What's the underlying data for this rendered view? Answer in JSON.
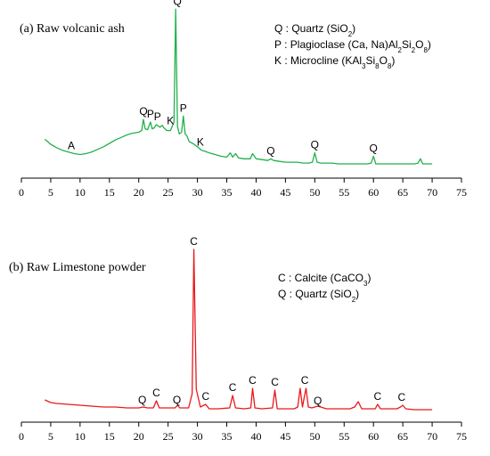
{
  "chart_data": [
    {
      "type": "line",
      "title": "(a) Raw volcanic ash",
      "color": "#22b14c",
      "xlim": [
        0,
        75
      ],
      "xticks": [
        0,
        5,
        10,
        15,
        20,
        25,
        30,
        35,
        40,
        45,
        50,
        55,
        60,
        65,
        70,
        75
      ],
      "yaxis_visible": false,
      "grid": false,
      "legend": {
        "placement": "top-right",
        "entries": [
          {
            "label": "Q : Quartz (SiO",
            "formula_subs": [
              "2"
            ],
            "suffix": ")"
          },
          {
            "label": "P : Plagioclase (Ca, Na)Al",
            "formula_subs": [
              "2",
              "2",
              "8"
            ],
            "formula_letters": [
              "Si",
              "O"
            ],
            "suffix": ")"
          },
          {
            "label": "K : Microcline (KAl",
            "formula_subs": [
              "3",
              "8"
            ],
            "formula_letters": [
              "Si",
              "O"
            ],
            "suffix": ")"
          }
        ]
      },
      "series": [
        {
          "x": [
            4,
            5,
            6,
            7,
            8,
            9,
            10,
            11,
            12,
            13,
            14,
            15,
            16,
            17,
            18,
            19,
            20,
            20.5,
            20.8,
            21.1,
            21.5,
            22,
            22.3,
            22.6,
            23,
            23.6,
            24,
            24.3,
            24.8,
            25.4,
            26,
            26.3,
            26.6,
            26.9,
            27.3,
            27.6,
            27.9,
            28.2,
            28.6,
            29.2,
            30,
            30.7,
            31.2,
            32,
            33,
            34,
            35,
            35.6,
            36,
            36.5,
            37,
            38,
            39,
            39.4,
            40,
            41,
            42,
            42.5,
            43,
            44,
            45,
            46,
            47,
            48,
            49,
            49.6,
            50,
            50.4,
            51,
            52,
            53,
            54,
            55,
            56,
            57,
            58,
            59,
            59.6,
            60,
            60.4,
            61,
            62,
            63,
            64,
            65,
            66,
            67,
            67.6,
            68,
            68.4,
            69,
            70
          ],
          "y": [
            30,
            24,
            20,
            17,
            15,
            13,
            12,
            13,
            15,
            18,
            21,
            25,
            29,
            32,
            35,
            37,
            38,
            40,
            53,
            42,
            41,
            50,
            42,
            43,
            47,
            44,
            46,
            43,
            40,
            40,
            50,
            182,
            45,
            36,
            38,
            57,
            36,
            34,
            27,
            25,
            21,
            17,
            16,
            14,
            12,
            10,
            9,
            14,
            9,
            13,
            8,
            7,
            7,
            13,
            7,
            6,
            5,
            7,
            5,
            4,
            3,
            3,
            3,
            2,
            2,
            3,
            14,
            3,
            2,
            2,
            2,
            1,
            1,
            1,
            1,
            1,
            1,
            2,
            10,
            1,
            1,
            1,
            1,
            1,
            1,
            1,
            1,
            2,
            7,
            1,
            1,
            1
          ]
        }
      ],
      "annotations": [
        {
          "text": "A",
          "x": 8.5,
          "y": 13
        },
        {
          "text": "Q",
          "x": 20.8,
          "y": 53
        },
        {
          "text": "P",
          "x": 22,
          "y": 50
        },
        {
          "text": "P",
          "x": 23.2,
          "y": 47
        },
        {
          "text": "K",
          "x": 25.4,
          "y": 42
        },
        {
          "text": "Q",
          "x": 26.6,
          "y": 182
        },
        {
          "text": "P",
          "x": 27.6,
          "y": 57
        },
        {
          "text": "K",
          "x": 30.5,
          "y": 17
        },
        {
          "text": "Q",
          "x": 42.5,
          "y": 7
        },
        {
          "text": "Q",
          "x": 50,
          "y": 14
        },
        {
          "text": "Q",
          "x": 60,
          "y": 10
        }
      ]
    },
    {
      "type": "line",
      "title": "(b) Raw Limestone powder",
      "color": "#e8191d",
      "xlim": [
        0,
        75
      ],
      "xticks": [
        0,
        5,
        10,
        15,
        20,
        25,
        30,
        35,
        40,
        45,
        50,
        55,
        60,
        65,
        70,
        75
      ],
      "yaxis_visible": false,
      "grid": false,
      "legend": {
        "placement": "top-right",
        "entries": [
          {
            "label": "C : Calcite (CaCO",
            "formula_subs": [
              "3"
            ],
            "suffix": ")"
          },
          {
            "label": "Q  : Quartz (SiO",
            "formula_subs": [
              "2"
            ],
            "suffix": ")"
          }
        ]
      },
      "series": [
        {
          "x": [
            4,
            5,
            6,
            8,
            10,
            12,
            14,
            16,
            18,
            20,
            20.8,
            21.5,
            22.5,
            23,
            23.5,
            25,
            26.2,
            26.6,
            27,
            28.5,
            29.1,
            29.4,
            29.8,
            30.5,
            31.4,
            32,
            33.5,
            35.5,
            36,
            36.5,
            38,
            39.1,
            39.4,
            39.8,
            41,
            42.8,
            43.2,
            43.6,
            45,
            46.5,
            47.1,
            47.5,
            47.9,
            48.2,
            48.5,
            48.9,
            49.5,
            50.5,
            52,
            54,
            56,
            56.8,
            57.4,
            58,
            59,
            60.3,
            60.7,
            61.2,
            62.5,
            64,
            64.6,
            65,
            65.5,
            67,
            68.5,
            70
          ],
          "y": [
            13,
            10,
            9,
            8,
            7,
            6,
            5,
            5,
            4,
            4,
            5,
            4,
            4,
            12,
            4,
            4,
            4,
            7,
            4,
            4,
            20,
            182,
            25,
            5,
            8,
            3,
            3,
            4,
            18,
            4,
            3,
            4,
            26,
            4,
            3,
            4,
            24,
            3,
            3,
            3,
            5,
            26,
            5,
            16,
            26,
            5,
            4,
            6,
            3,
            3,
            3,
            5,
            11,
            3,
            3,
            3,
            8,
            3,
            3,
            3,
            5,
            7,
            3,
            2,
            2,
            2
          ]
        }
      ],
      "annotations": [
        {
          "text": "Q",
          "x": 20.6,
          "y": 4
        },
        {
          "text": "C",
          "x": 23,
          "y": 12
        },
        {
          "text": "Q",
          "x": 26.5,
          "y": 4
        },
        {
          "text": "C",
          "x": 29.4,
          "y": 182
        },
        {
          "text": "C",
          "x": 31.4,
          "y": 8
        },
        {
          "text": "C",
          "x": 36,
          "y": 18
        },
        {
          "text": "C",
          "x": 39.4,
          "y": 26
        },
        {
          "text": "C",
          "x": 43.2,
          "y": 24
        },
        {
          "text": "C",
          "x": 48.3,
          "y": 26
        },
        {
          "text": "Q",
          "x": 50.5,
          "y": 3
        },
        {
          "text": "C",
          "x": 60.7,
          "y": 8
        },
        {
          "text": "C",
          "x": 64.8,
          "y": 7
        }
      ]
    }
  ]
}
